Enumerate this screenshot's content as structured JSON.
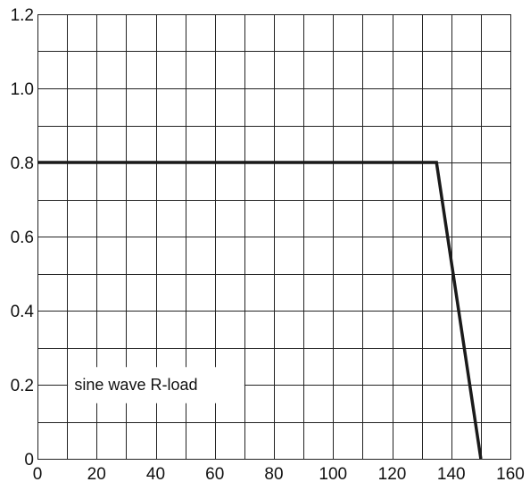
{
  "chart_data": {
    "type": "line",
    "title": "",
    "xlabel": "",
    "ylabel": "",
    "xlim": [
      0,
      160
    ],
    "ylim": [
      0,
      1.2
    ],
    "x_ticks": [
      "0",
      "20",
      "40",
      "60",
      "80",
      "100",
      "120",
      "140",
      "160"
    ],
    "y_ticks": [
      "0",
      "0.2",
      "0.4",
      "0.6",
      "0.8",
      "1.0",
      "1.2"
    ],
    "grid": true,
    "grid_minor_x_step": 10,
    "grid_minor_y_step": 0.1,
    "annotation": "sine wave R-load",
    "series": [
      {
        "x": [
          0,
          135,
          150
        ],
        "y": [
          0.8,
          0.8,
          0
        ]
      }
    ],
    "colors": {
      "line": "#1a1a1a",
      "grid": "#222222",
      "frame": "#222222",
      "text": "#111111",
      "background": "#ffffff"
    }
  }
}
